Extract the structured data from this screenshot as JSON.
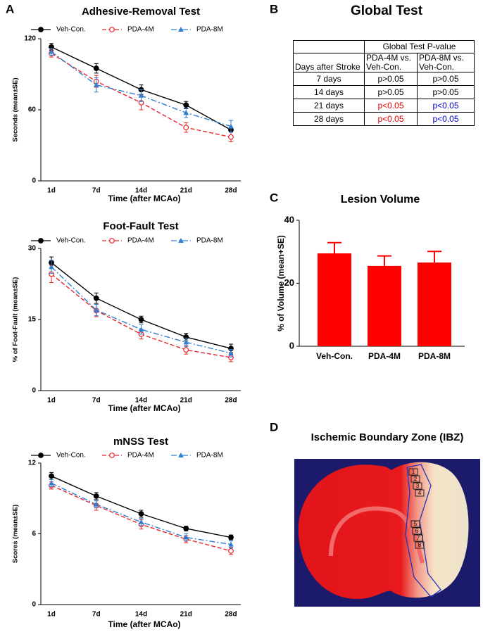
{
  "panel_labels": [
    "A",
    "B",
    "C",
    "D"
  ],
  "chart_data": [
    {
      "type": "line",
      "title": "Adhesive-Removal Test",
      "y_label": "Seconds (mean±SE)",
      "x_label": "Time (after MCAo)",
      "categories": [
        "1d",
        "7d",
        "14d",
        "21d",
        "28d"
      ],
      "ylim": [
        0,
        120
      ],
      "yticks": [
        0,
        60,
        120
      ],
      "series": [
        {
          "name": "Veh-Con.",
          "color": "#000000",
          "linestyle": "solid",
          "marker": "circle-filled",
          "values": [
            113,
            95,
            77,
            64,
            43
          ],
          "errors": [
            3,
            4,
            4,
            3,
            2
          ]
        },
        {
          "name": "PDA-4M",
          "color": "#e8262b",
          "linestyle": "dashed",
          "marker": "circle-open",
          "values": [
            107.5,
            84,
            66,
            45,
            37
          ],
          "errors": [
            3,
            5,
            6,
            4,
            4
          ]
        },
        {
          "name": "PDA-8M",
          "color": "#2f7fd1",
          "linestyle": "dashdot",
          "marker": "triangle",
          "values": [
            109,
            81,
            72,
            57.5,
            46
          ],
          "errors": [
            3,
            6,
            5,
            4,
            5
          ]
        }
      ]
    },
    {
      "type": "line",
      "title": "Foot-Fault Test",
      "y_label": "% of Foot-Fault (mean±SE)",
      "x_label": "Time (after MCAo)",
      "categories": [
        "1d",
        "7d",
        "14d",
        "21d",
        "28d"
      ],
      "ylim": [
        0,
        30
      ],
      "yticks": [
        0,
        15,
        30
      ],
      "series": [
        {
          "name": "Veh-Con.",
          "color": "#000000",
          "linestyle": "solid",
          "marker": "circle-filled",
          "values": [
            27,
            19.5,
            15,
            11.3,
            8.9
          ],
          "errors": [
            1.2,
            1.1,
            0.7,
            0.8,
            0.9
          ]
        },
        {
          "name": "PDA-4M",
          "color": "#e8262b",
          "linestyle": "dashed",
          "marker": "circle-open",
          "values": [
            24.6,
            16.9,
            11.9,
            8.6,
            7.0
          ],
          "errors": [
            1.8,
            1.3,
            1.0,
            0.9,
            0.9
          ]
        },
        {
          "name": "PDA-8M",
          "color": "#2f7fd1",
          "linestyle": "dashdot",
          "marker": "triangle",
          "values": [
            26.1,
            17,
            12.9,
            10.2,
            7.9
          ],
          "errors": [
            1.4,
            1.2,
            1.0,
            0.9,
            0.8
          ]
        }
      ]
    },
    {
      "type": "line",
      "title": "mNSS Test",
      "y_label": "Scores (mean±SE)",
      "x_label": "Time (after MCAo)",
      "categories": [
        "1d",
        "7d",
        "14d",
        "21d",
        "28d"
      ],
      "ylim": [
        0,
        12
      ],
      "yticks": [
        0,
        6,
        12
      ],
      "series": [
        {
          "name": "Veh-Con.",
          "color": "#000000",
          "linestyle": "solid",
          "marker": "circle-filled",
          "values": [
            10.9,
            9.2,
            7.7,
            6.45,
            5.7
          ],
          "errors": [
            0.3,
            0.3,
            0.3,
            0.2,
            0.2
          ]
        },
        {
          "name": "PDA-4M",
          "color": "#e8262b",
          "linestyle": "dashed",
          "marker": "circle-open",
          "values": [
            10.1,
            8.4,
            6.8,
            5.55,
            4.55
          ],
          "errors": [
            0.3,
            0.4,
            0.4,
            0.3,
            0.3
          ]
        },
        {
          "name": "PDA-8M",
          "color": "#2f7fd1",
          "linestyle": "dashdot",
          "marker": "triangle",
          "values": [
            10.3,
            8.5,
            7.0,
            5.7,
            5.1
          ],
          "errors": [
            0.3,
            0.3,
            0.3,
            0.3,
            0.3
          ]
        }
      ]
    },
    {
      "type": "bar",
      "title": "Lesion Volume",
      "y_label": "% of Volume (mean+SE)",
      "categories": [
        "Veh-Con.",
        "PDA-4M",
        "PDA-8M"
      ],
      "values": [
        29.5,
        25.5,
        26.6
      ],
      "errors": [
        3.4,
        3.2,
        3.5
      ],
      "color": "#ff0000",
      "ylim": [
        0,
        40
      ],
      "yticks": [
        0,
        20,
        40
      ]
    }
  ],
  "table": {
    "title": "Global Test",
    "group_header": "Global Test P-value",
    "columns": [
      "Days after Stroke",
      "PDA-4M vs. Veh-Con.",
      "PDA-8M vs. Veh-Con."
    ],
    "rows": [
      [
        "7 days",
        "p>0.05",
        "p>0.05"
      ],
      [
        "14 days",
        "p>0.05",
        "p>0.05"
      ],
      [
        "21 days",
        "p<0.05",
        "p<0.05"
      ],
      [
        "28 days",
        "p<0.05",
        "p<0.05"
      ]
    ]
  },
  "image": {
    "title": "Ischemic Boundary Zone (IBZ)",
    "regions": [
      "1",
      "2",
      "3",
      "4",
      "5",
      "6",
      "7",
      "8"
    ]
  }
}
